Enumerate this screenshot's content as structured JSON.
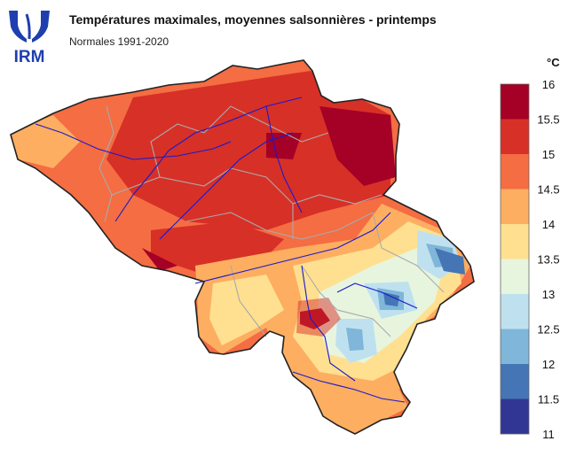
{
  "header": {
    "logo_text": "IRM",
    "title": "Températures maximales, moyennes salsonnières - printemps",
    "subtitle": "Normales 1991-2020"
  },
  "legend": {
    "unit": "°C",
    "ticks": [
      "16",
      "15.5",
      "15",
      "14.5",
      "14",
      "13.5",
      "13",
      "12.5",
      "12",
      "11.5",
      "11"
    ],
    "bins": [
      {
        "min": 15.5,
        "max": 16.0,
        "color": "#a50026"
      },
      {
        "min": 15.0,
        "max": 15.5,
        "color": "#d73027"
      },
      {
        "min": 14.5,
        "max": 15.0,
        "color": "#f46d43"
      },
      {
        "min": 14.0,
        "max": 14.5,
        "color": "#fdae61"
      },
      {
        "min": 13.5,
        "max": 14.0,
        "color": "#fee090"
      },
      {
        "min": 13.0,
        "max": 13.5,
        "color": "#e7f5df"
      },
      {
        "min": 12.5,
        "max": 13.0,
        "color": "#bfe1ef"
      },
      {
        "min": 12.0,
        "max": 12.5,
        "color": "#7fb6d9"
      },
      {
        "min": 11.5,
        "max": 12.0,
        "color": "#4575b4"
      },
      {
        "min": 11.0,
        "max": 11.5,
        "color": "#313695"
      }
    ]
  },
  "map": {
    "region": "Belgique",
    "layers": [
      "temperature-field",
      "province-borders",
      "rivers",
      "country-border"
    ]
  }
}
